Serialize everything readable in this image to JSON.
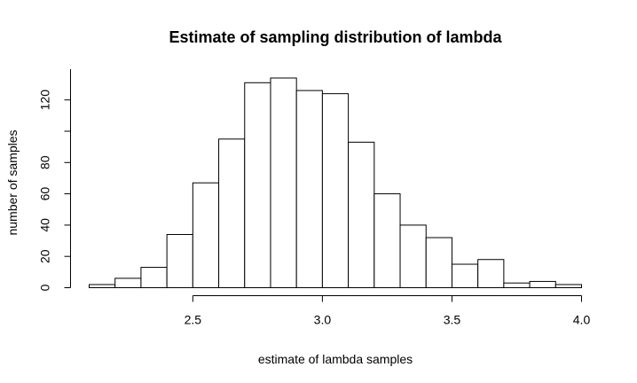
{
  "chart_data": {
    "type": "bar",
    "title": "Estimate of sampling distribution of lambda",
    "xlabel": "estimate of lambda samples",
    "ylabel": "number of samples",
    "bin_edges": [
      2.1,
      2.2,
      2.3,
      2.4,
      2.5,
      2.6,
      2.7,
      2.8,
      2.9,
      3.0,
      3.1,
      3.2,
      3.3,
      3.4,
      3.5,
      3.6,
      3.7,
      3.8,
      3.9,
      4.0
    ],
    "values": [
      2,
      6,
      13,
      34,
      67,
      95,
      131,
      134,
      126,
      124,
      93,
      60,
      40,
      32,
      15,
      18,
      3,
      4,
      2
    ],
    "xlim": [
      2.1,
      4.0
    ],
    "ylim": [
      0,
      134
    ],
    "xticks": [
      2.5,
      3.0,
      3.5,
      4.0
    ],
    "xtick_labels": [
      "2.5",
      "3.0",
      "3.5",
      "4.0"
    ],
    "yticks": [
      0,
      20,
      40,
      60,
      80,
      120
    ],
    "ytick_labels": [
      "0",
      "20",
      "40",
      "60",
      "80",
      "120"
    ],
    "grid": false,
    "bar_fill": "#ffffff",
    "bar_stroke": "#000000"
  }
}
